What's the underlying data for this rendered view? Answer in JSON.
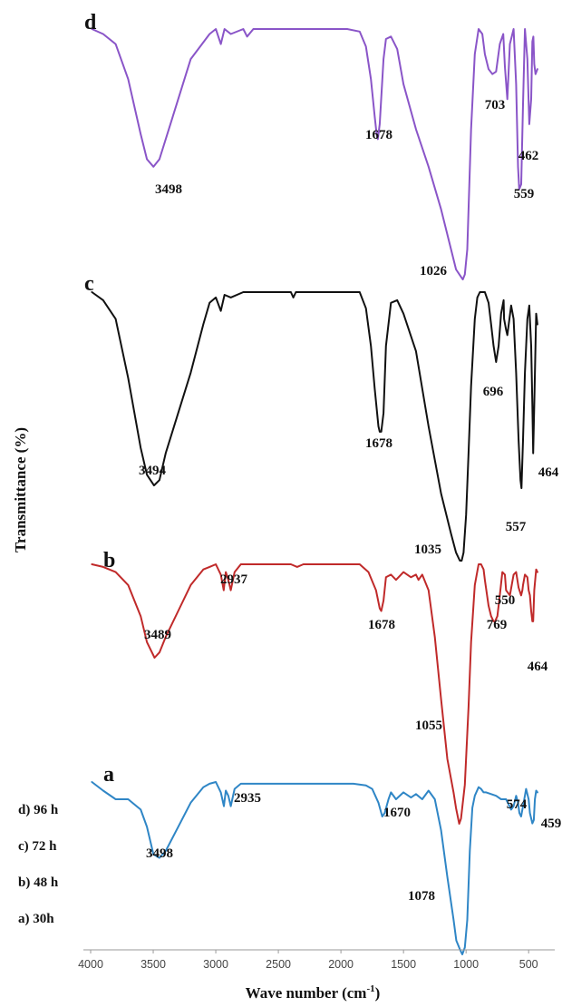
{
  "chart_data": {
    "type": "line",
    "xlabel_main": "Wave number (cm",
    "xlabel_sup": "-1",
    "xlabel_close": ")",
    "ylabel": "Transmittance (%)",
    "xlim": [
      4000,
      400
    ],
    "x_reversed": true,
    "xticks": [
      4000,
      3500,
      3000,
      2500,
      2000,
      1500,
      1000,
      500
    ],
    "legend_entries": [
      "d) 96 h",
      "c) 72 h",
      "b) 48 h",
      "a) 30h"
    ],
    "grid": false,
    "series": [
      {
        "letter": "d",
        "color": "#8a55c8",
        "baseline_level": 0.0,
        "y_unit": "relative transmittance drop, 0 = top of trace, 1 = deepest point",
        "x": [
          3990,
          3900,
          3800,
          3700,
          3600,
          3550,
          3498,
          3450,
          3350,
          3200,
          3050,
          3000,
          2960,
          2930,
          2880,
          2780,
          2750,
          2700,
          2400,
          2200,
          1950,
          1850,
          1800,
          1760,
          1730,
          1715,
          1705,
          1690,
          1660,
          1640,
          1600,
          1550,
          1500,
          1400,
          1300,
          1200,
          1120,
          1080,
          1040,
          1026,
          1010,
          990,
          960,
          930,
          900,
          870,
          850,
          820,
          790,
          760,
          730,
          703,
          690,
          670,
          650,
          620,
          600,
          585,
          575,
          559,
          545,
          530,
          510,
          495,
          480,
          470,
          462,
          455,
          445,
          430
        ],
        "y": [
          0.0,
          0.02,
          0.06,
          0.2,
          0.42,
          0.52,
          0.55,
          0.52,
          0.36,
          0.12,
          0.02,
          0.0,
          0.06,
          0.0,
          0.02,
          0.0,
          0.03,
          0.0,
          0.0,
          0.0,
          0.0,
          0.01,
          0.07,
          0.2,
          0.35,
          0.42,
          0.44,
          0.38,
          0.12,
          0.04,
          0.03,
          0.08,
          0.22,
          0.4,
          0.55,
          0.72,
          0.88,
          0.96,
          0.99,
          1.0,
          0.98,
          0.88,
          0.4,
          0.1,
          0.0,
          0.02,
          0.1,
          0.16,
          0.18,
          0.17,
          0.06,
          0.02,
          0.15,
          0.28,
          0.06,
          0.0,
          0.22,
          0.55,
          0.64,
          0.62,
          0.3,
          0.0,
          0.12,
          0.38,
          0.28,
          0.05,
          0.03,
          0.14,
          0.18,
          0.16
        ]
      },
      {
        "letter": "c",
        "color": "#111111",
        "baseline_level": 0.0,
        "y_unit": "relative transmittance drop, 0 = top of trace, 1 = deepest point",
        "x": [
          3990,
          3900,
          3800,
          3700,
          3600,
          3550,
          3494,
          3450,
          3400,
          3300,
          3200,
          3100,
          3050,
          3000,
          2960,
          2930,
          2880,
          2780,
          2700,
          2400,
          2380,
          2360,
          2200,
          2000,
          1900,
          1850,
          1800,
          1760,
          1730,
          1700,
          1690,
          1678,
          1660,
          1640,
          1600,
          1550,
          1500,
          1400,
          1300,
          1200,
          1120,
          1080,
          1050,
          1035,
          1020,
          1000,
          980,
          960,
          930,
          910,
          890,
          870,
          850,
          820,
          800,
          780,
          760,
          740,
          720,
          700,
          696,
          680,
          670,
          640,
          620,
          600,
          580,
          565,
          557,
          545,
          530,
          510,
          495,
          480,
          470,
          464,
          455,
          440,
          430
        ],
        "y": [
          0.0,
          0.03,
          0.1,
          0.32,
          0.58,
          0.68,
          0.72,
          0.7,
          0.6,
          0.45,
          0.3,
          0.12,
          0.04,
          0.02,
          0.07,
          0.01,
          0.02,
          0.0,
          0.0,
          0.0,
          0.02,
          0.0,
          0.0,
          0.0,
          0.0,
          0.0,
          0.06,
          0.2,
          0.36,
          0.5,
          0.52,
          0.52,
          0.45,
          0.2,
          0.04,
          0.03,
          0.08,
          0.22,
          0.5,
          0.75,
          0.9,
          0.97,
          1.0,
          1.0,
          0.97,
          0.83,
          0.6,
          0.35,
          0.1,
          0.02,
          0.0,
          0.0,
          0.0,
          0.04,
          0.12,
          0.2,
          0.26,
          0.2,
          0.08,
          0.03,
          0.1,
          0.14,
          0.16,
          0.05,
          0.1,
          0.3,
          0.55,
          0.7,
          0.73,
          0.55,
          0.3,
          0.1,
          0.05,
          0.2,
          0.42,
          0.6,
          0.42,
          0.08,
          0.12
        ]
      },
      {
        "letter": "b",
        "color": "#c02a2a",
        "baseline_level": 0.0,
        "y_unit": "relative transmittance drop, 0 = top of trace, 1 = deepest point",
        "x": [
          3990,
          3900,
          3800,
          3700,
          3600,
          3550,
          3489,
          3450,
          3400,
          3300,
          3200,
          3100,
          3050,
          3000,
          2960,
          2937,
          2920,
          2900,
          2880,
          2850,
          2800,
          2400,
          2350,
          2300,
          2000,
          1850,
          1780,
          1720,
          1690,
          1678,
          1660,
          1640,
          1600,
          1560,
          1500,
          1440,
          1400,
          1380,
          1350,
          1300,
          1250,
          1200,
          1150,
          1100,
          1080,
          1055,
          1040,
          1010,
          980,
          960,
          930,
          900,
          880,
          860,
          850,
          820,
          800,
          780,
          769,
          750,
          730,
          710,
          690,
          680,
          650,
          620,
          600,
          580,
          560,
          550,
          545,
          530,
          510,
          500,
          490,
          480,
          470,
          464,
          455,
          440,
          430
        ],
        "y": [
          0.0,
          0.01,
          0.03,
          0.08,
          0.2,
          0.3,
          0.36,
          0.34,
          0.28,
          0.18,
          0.08,
          0.02,
          0.01,
          0.0,
          0.04,
          0.1,
          0.03,
          0.06,
          0.1,
          0.03,
          0.0,
          0.0,
          0.01,
          0.0,
          0.0,
          0.0,
          0.03,
          0.1,
          0.17,
          0.18,
          0.14,
          0.05,
          0.04,
          0.06,
          0.03,
          0.05,
          0.04,
          0.06,
          0.04,
          0.1,
          0.28,
          0.52,
          0.75,
          0.88,
          0.94,
          1.0,
          0.98,
          0.85,
          0.55,
          0.3,
          0.08,
          0.0,
          0.0,
          0.02,
          0.06,
          0.16,
          0.2,
          0.22,
          0.22,
          0.2,
          0.12,
          0.03,
          0.04,
          0.1,
          0.12,
          0.04,
          0.03,
          0.09,
          0.12,
          0.1,
          0.08,
          0.04,
          0.05,
          0.1,
          0.12,
          0.18,
          0.22,
          0.22,
          0.1,
          0.02,
          0.03
        ]
      },
      {
        "letter": "a",
        "color": "#2f86c6",
        "baseline_level": 0.0,
        "y_unit": "relative transmittance drop, 0 = top of trace, 1 = deepest point",
        "x": [
          3990,
          3900,
          3800,
          3700,
          3600,
          3550,
          3498,
          3450,
          3400,
          3300,
          3200,
          3100,
          3050,
          3000,
          2960,
          2935,
          2920,
          2900,
          2880,
          2850,
          2800,
          2400,
          2200,
          1900,
          1800,
          1750,
          1700,
          1670,
          1650,
          1620,
          1600,
          1560,
          1500,
          1440,
          1400,
          1350,
          1300,
          1250,
          1200,
          1150,
          1100,
          1078,
          1050,
          1030,
          1010,
          990,
          970,
          950,
          930,
          900,
          880,
          860,
          840,
          800,
          760,
          720,
          680,
          640,
          620,
          600,
          585,
          574,
          560,
          540,
          520,
          500,
          490,
          470,
          459,
          450,
          440,
          430
        ],
        "y": [
          0.0,
          0.05,
          0.1,
          0.1,
          0.16,
          0.26,
          0.42,
          0.44,
          0.4,
          0.26,
          0.12,
          0.03,
          0.01,
          0.0,
          0.06,
          0.14,
          0.05,
          0.08,
          0.14,
          0.04,
          0.01,
          0.01,
          0.01,
          0.01,
          0.02,
          0.04,
          0.12,
          0.2,
          0.18,
          0.1,
          0.06,
          0.1,
          0.06,
          0.09,
          0.07,
          0.1,
          0.05,
          0.1,
          0.28,
          0.55,
          0.8,
          0.92,
          0.97,
          1.0,
          0.96,
          0.8,
          0.4,
          0.15,
          0.08,
          0.03,
          0.04,
          0.06,
          0.06,
          0.07,
          0.08,
          0.1,
          0.1,
          0.16,
          0.14,
          0.08,
          0.12,
          0.18,
          0.2,
          0.12,
          0.04,
          0.1,
          0.18,
          0.24,
          0.22,
          0.1,
          0.05,
          0.06
        ]
      }
    ],
    "peak_labels": [
      {
        "series": "d",
        "text": "1678",
        "x": 1678
      },
      {
        "series": "d",
        "text": "703",
        "x": 703
      },
      {
        "series": "d",
        "text": "3498",
        "x": 3498
      },
      {
        "series": "d",
        "text": "462",
        "x": 462
      },
      {
        "series": "d",
        "text": "559",
        "x": 559
      },
      {
        "series": "d",
        "text": "1026",
        "x": 1026
      },
      {
        "series": "c",
        "text": "696",
        "x": 696
      },
      {
        "series": "c",
        "text": "1678",
        "x": 1678
      },
      {
        "series": "c",
        "text": "464",
        "x": 464
      },
      {
        "series": "c",
        "text": "3494",
        "x": 3494
      },
      {
        "series": "c",
        "text": "557",
        "x": 557
      },
      {
        "series": "c",
        "text": "1035",
        "x": 1035
      },
      {
        "series": "b",
        "text": "2937",
        "x": 2937
      },
      {
        "series": "b",
        "text": "550",
        "x": 550
      },
      {
        "series": "b",
        "text": "1678",
        "x": 1678
      },
      {
        "series": "b",
        "text": "769",
        "x": 769
      },
      {
        "series": "b",
        "text": "464",
        "x": 464
      },
      {
        "series": "b",
        "text": "3489",
        "x": 3489
      },
      {
        "series": "b",
        "text": "1055",
        "x": 1055
      },
      {
        "series": "a",
        "text": "2935",
        "x": 2935
      },
      {
        "series": "a",
        "text": "1670",
        "x": 1670
      },
      {
        "series": "a",
        "text": "574",
        "x": 574
      },
      {
        "series": "a",
        "text": "459",
        "x": 459
      },
      {
        "series": "a",
        "text": "3498",
        "x": 3498
      },
      {
        "series": "a",
        "text": "1078",
        "x": 1078
      }
    ]
  }
}
